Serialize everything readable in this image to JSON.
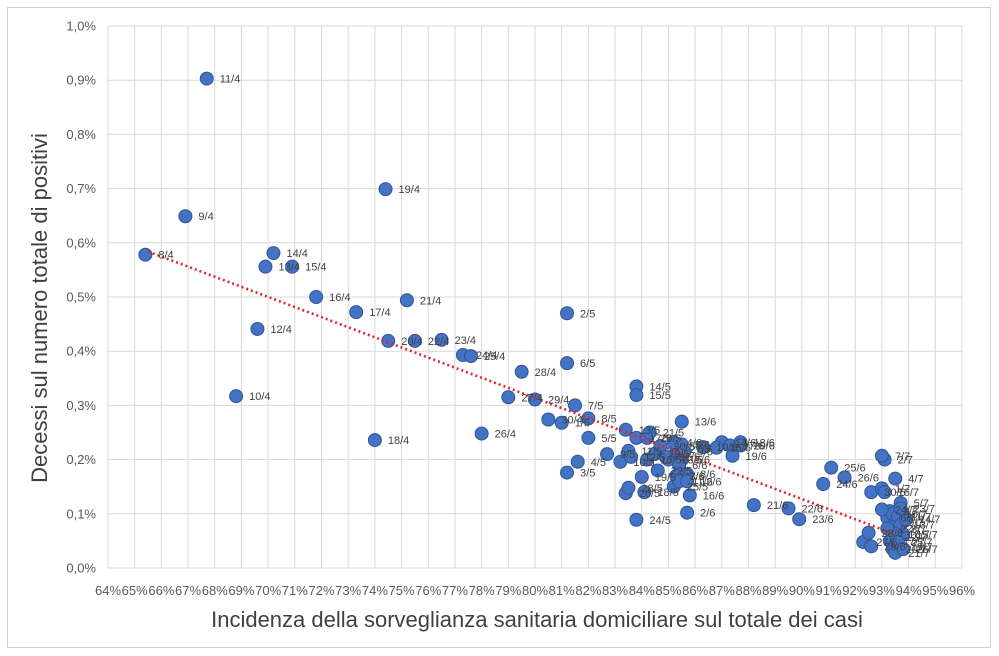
{
  "chart_data": {
    "type": "scatter",
    "title": "",
    "xlabel": "Incidenza della sorveglianza sanitaria domiciliare sul totale dei casi",
    "ylabel": "Decessi sul numero totale di positivi",
    "xlim": [
      64,
      96
    ],
    "ylim": [
      0.0,
      1.0
    ],
    "x_ticks": [
      64,
      65,
      66,
      67,
      68,
      69,
      70,
      71,
      72,
      73,
      74,
      75,
      76,
      77,
      78,
      79,
      80,
      81,
      82,
      83,
      84,
      85,
      86,
      87,
      88,
      89,
      90,
      91,
      92,
      93,
      94,
      95,
      96
    ],
    "x_tick_labels": [
      "64%",
      "65%",
      "66%",
      "67%",
      "68%",
      "69%",
      "70%",
      "71%",
      "72%",
      "73%",
      "74%",
      "75%",
      "76%",
      "77%",
      "78%",
      "79%",
      "80%",
      "81%",
      "82%",
      "83%",
      "84%",
      "85%",
      "86%",
      "87%",
      "88%",
      "89%",
      "90%",
      "91%",
      "92%",
      "93%",
      "94%",
      "95%",
      "96%"
    ],
    "y_ticks": [
      0.0,
      0.1,
      0.2,
      0.3,
      0.4,
      0.5,
      0.6,
      0.7,
      0.8,
      0.9,
      1.0
    ],
    "y_tick_labels": [
      "0,0%",
      "0,1%",
      "0,2%",
      "0,3%",
      "0,4%",
      "0,5%",
      "0,6%",
      "0,7%",
      "0,8%",
      "0,9%",
      "1,0%"
    ],
    "grid": true,
    "colors": {
      "marker": "#4472c4",
      "trendline": "#e0262b",
      "grid": "#d9d9d9",
      "frame": "#d0d0d0",
      "text": "#404040"
    },
    "trendline": {
      "type": "linear",
      "x": [
        65.5,
        93.5
      ],
      "y": [
        0.584,
        0.062
      ]
    },
    "points": [
      {
        "label": "8/4",
        "x": 65.4,
        "y": 0.578
      },
      {
        "label": "9/4",
        "x": 66.9,
        "y": 0.649
      },
      {
        "label": "11/4",
        "x": 67.7,
        "y": 0.903
      },
      {
        "label": "10/4",
        "x": 68.8,
        "y": 0.317
      },
      {
        "label": "12/4",
        "x": 69.6,
        "y": 0.441
      },
      {
        "label": "13/4",
        "x": 69.9,
        "y": 0.556
      },
      {
        "label": "14/4",
        "x": 70.2,
        "y": 0.581
      },
      {
        "label": "15/4",
        "x": 70.9,
        "y": 0.556
      },
      {
        "label": "16/4",
        "x": 71.8,
        "y": 0.5
      },
      {
        "label": "17/4",
        "x": 73.3,
        "y": 0.472
      },
      {
        "label": "18/4",
        "x": 74.0,
        "y": 0.236
      },
      {
        "label": "19/4",
        "x": 74.4,
        "y": 0.699
      },
      {
        "label": "20/4",
        "x": 74.5,
        "y": 0.419
      },
      {
        "label": "21/4",
        "x": 75.2,
        "y": 0.494
      },
      {
        "label": "22/4",
        "x": 75.5,
        "y": 0.419
      },
      {
        "label": "23/4",
        "x": 76.5,
        "y": 0.421
      },
      {
        "label": "24/4",
        "x": 77.3,
        "y": 0.393
      },
      {
        "label": "25/4",
        "x": 77.6,
        "y": 0.391
      },
      {
        "label": "26/4",
        "x": 78.0,
        "y": 0.248
      },
      {
        "label": "27/4",
        "x": 79.0,
        "y": 0.315
      },
      {
        "label": "28/4",
        "x": 79.5,
        "y": 0.362
      },
      {
        "label": "29/4",
        "x": 80.0,
        "y": 0.311
      },
      {
        "label": "30/4",
        "x": 80.5,
        "y": 0.274
      },
      {
        "label": "1/5",
        "x": 81.0,
        "y": 0.268
      },
      {
        "label": "2/5",
        "x": 81.2,
        "y": 0.47
      },
      {
        "label": "3/5",
        "x": 81.2,
        "y": 0.176
      },
      {
        "label": "4/5",
        "x": 81.6,
        "y": 0.196
      },
      {
        "label": "5/5",
        "x": 82.0,
        "y": 0.24
      },
      {
        "label": "6/5",
        "x": 81.2,
        "y": 0.378
      },
      {
        "label": "7/5",
        "x": 81.5,
        "y": 0.3
      },
      {
        "label": "8/5",
        "x": 82.0,
        "y": 0.276
      },
      {
        "label": "9/5",
        "x": 82.7,
        "y": 0.21
      },
      {
        "label": "10/5",
        "x": 83.2,
        "y": 0.196
      },
      {
        "label": "11/5",
        "x": 83.5,
        "y": 0.216
      },
      {
        "label": "12/5",
        "x": 83.6,
        "y": 0.205
      },
      {
        "label": "13/5",
        "x": 83.4,
        "y": 0.255
      },
      {
        "label": "14/5",
        "x": 83.8,
        "y": 0.335
      },
      {
        "label": "15/5",
        "x": 83.8,
        "y": 0.319
      },
      {
        "label": "16/5",
        "x": 84.2,
        "y": 0.2
      },
      {
        "label": "17/5",
        "x": 83.8,
        "y": 0.24
      },
      {
        "label": "18/5",
        "x": 84.1,
        "y": 0.14
      },
      {
        "label": "19/5",
        "x": 84.0,
        "y": 0.168
      },
      {
        "label": "20/5",
        "x": 84.2,
        "y": 0.24
      },
      {
        "label": "21/5",
        "x": 84.3,
        "y": 0.25
      },
      {
        "label": "22/5",
        "x": 84.6,
        "y": 0.18
      },
      {
        "label": "23/5",
        "x": 85.0,
        "y": 0.2
      },
      {
        "label": "24/5",
        "x": 83.8,
        "y": 0.089
      },
      {
        "label": "25/5",
        "x": 85.2,
        "y": 0.15
      },
      {
        "label": "26/5",
        "x": 83.4,
        "y": 0.138
      },
      {
        "label": "27/5",
        "x": 85.3,
        "y": 0.22
      },
      {
        "label": "28/5",
        "x": 83.5,
        "y": 0.148
      },
      {
        "label": "29/5",
        "x": 84.5,
        "y": 0.211
      },
      {
        "label": "30/5",
        "x": 84.7,
        "y": 0.225
      },
      {
        "label": "31/5",
        "x": 84.9,
        "y": 0.205
      },
      {
        "label": "1/6",
        "x": 85.5,
        "y": 0.2
      },
      {
        "label": "2/6",
        "x": 85.7,
        "y": 0.102
      },
      {
        "label": "3/6",
        "x": 85.3,
        "y": 0.17
      },
      {
        "label": "4/6",
        "x": 85.2,
        "y": 0.232
      },
      {
        "label": "5/6",
        "x": 85.5,
        "y": 0.228
      },
      {
        "label": "6/6",
        "x": 85.4,
        "y": 0.19
      },
      {
        "label": "7/6",
        "x": 85.3,
        "y": 0.17
      },
      {
        "label": "8/6",
        "x": 85.7,
        "y": 0.173
      },
      {
        "label": "9/6",
        "x": 85.6,
        "y": 0.215
      },
      {
        "label": "10/6",
        "x": 86.3,
        "y": 0.223
      },
      {
        "label": "11/6",
        "x": 85.4,
        "y": 0.16
      },
      {
        "label": "12/6",
        "x": 85.7,
        "y": 0.16
      },
      {
        "label": "13/6",
        "x": 85.5,
        "y": 0.27
      },
      {
        "label": "14/6",
        "x": 87.0,
        "y": 0.232
      },
      {
        "label": "15/6",
        "x": 86.8,
        "y": 0.222
      },
      {
        "label": "16/6",
        "x": 85.8,
        "y": 0.134
      },
      {
        "label": "17/6",
        "x": 87.3,
        "y": 0.226
      },
      {
        "label": "18/6",
        "x": 87.7,
        "y": 0.232
      },
      {
        "label": "19/6",
        "x": 87.4,
        "y": 0.207
      },
      {
        "label": "20/6",
        "x": 87.7,
        "y": 0.226
      },
      {
        "label": "21/6",
        "x": 88.2,
        "y": 0.116
      },
      {
        "label": "22/6",
        "x": 89.5,
        "y": 0.11
      },
      {
        "label": "23/6",
        "x": 89.9,
        "y": 0.09
      },
      {
        "label": "24/6",
        "x": 90.8,
        "y": 0.155
      },
      {
        "label": "25/6",
        "x": 91.1,
        "y": 0.185
      },
      {
        "label": "26/6",
        "x": 91.6,
        "y": 0.167
      },
      {
        "label": "27/6",
        "x": 92.3,
        "y": 0.048
      },
      {
        "label": "28/6",
        "x": 92.5,
        "y": 0.065
      },
      {
        "label": "29/6",
        "x": 92.6,
        "y": 0.04
      },
      {
        "label": "30/6",
        "x": 92.6,
        "y": 0.14
      },
      {
        "label": "1/7",
        "x": 93.0,
        "y": 0.147
      },
      {
        "label": "2/7",
        "x": 93.1,
        "y": 0.2
      },
      {
        "label": "3/7",
        "x": 93.3,
        "y": 0.105
      },
      {
        "label": "4/7",
        "x": 93.5,
        "y": 0.165
      },
      {
        "label": "5/7",
        "x": 93.7,
        "y": 0.12
      },
      {
        "label": "6/7",
        "x": 93.2,
        "y": 0.093
      },
      {
        "label": "7/7",
        "x": 93.0,
        "y": 0.207
      },
      {
        "label": "8/7",
        "x": 93.6,
        "y": 0.072
      },
      {
        "label": "9/7",
        "x": 93.5,
        "y": 0.085
      },
      {
        "label": "10/7",
        "x": 93.4,
        "y": 0.1
      },
      {
        "label": "11/7",
        "x": 93.6,
        "y": 0.095
      },
      {
        "label": "12/7",
        "x": 93.4,
        "y": 0.057
      },
      {
        "label": "13/7",
        "x": 93.7,
        "y": 0.08
      },
      {
        "label": "14/7",
        "x": 93.9,
        "y": 0.09
      },
      {
        "label": "15/7",
        "x": 93.8,
        "y": 0.062
      },
      {
        "label": "16/7",
        "x": 93.1,
        "y": 0.14
      },
      {
        "label": "17/7",
        "x": 93.3,
        "y": 0.05
      },
      {
        "label": "18/7",
        "x": 93.5,
        "y": 0.063
      },
      {
        "label": "19/7",
        "x": 93.6,
        "y": 0.04
      },
      {
        "label": "20/7",
        "x": 93.4,
        "y": 0.035
      },
      {
        "label": "21/7",
        "x": 93.5,
        "y": 0.028
      },
      {
        "label": "22/7",
        "x": 93.2,
        "y": 0.073
      },
      {
        "label": "23/7",
        "x": 93.7,
        "y": 0.11
      },
      {
        "label": "24/7",
        "x": 93.0,
        "y": 0.108
      },
      {
        "label": "25/7",
        "x": 93.6,
        "y": 0.048
      },
      {
        "label": "26/7",
        "x": 93.8,
        "y": 0.035
      }
    ]
  }
}
